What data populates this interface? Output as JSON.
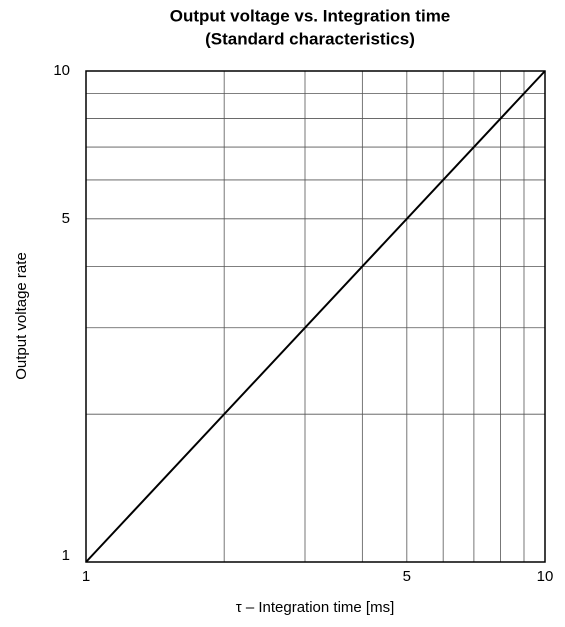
{
  "chart_data": {
    "type": "line",
    "title": "Output voltage vs. Integration time",
    "subtitle": "(Standard characteristics)",
    "x_label": "τ – Integration time [ms]",
    "y_label": "Output voltage rate",
    "x": [
      1,
      10
    ],
    "values": [
      1,
      10
    ],
    "color": "#000000",
    "xlim": [
      1,
      10
    ],
    "ylim": [
      1,
      10
    ],
    "xticks": [
      1,
      5,
      10
    ],
    "yticks": [
      1,
      5,
      10
    ],
    "xminor": [
      2,
      3,
      4,
      6,
      7,
      8,
      9
    ],
    "yminor": [
      2,
      3,
      4,
      6,
      7,
      8,
      9
    ],
    "xscale": "log",
    "yscale": "log",
    "grid": true
  }
}
